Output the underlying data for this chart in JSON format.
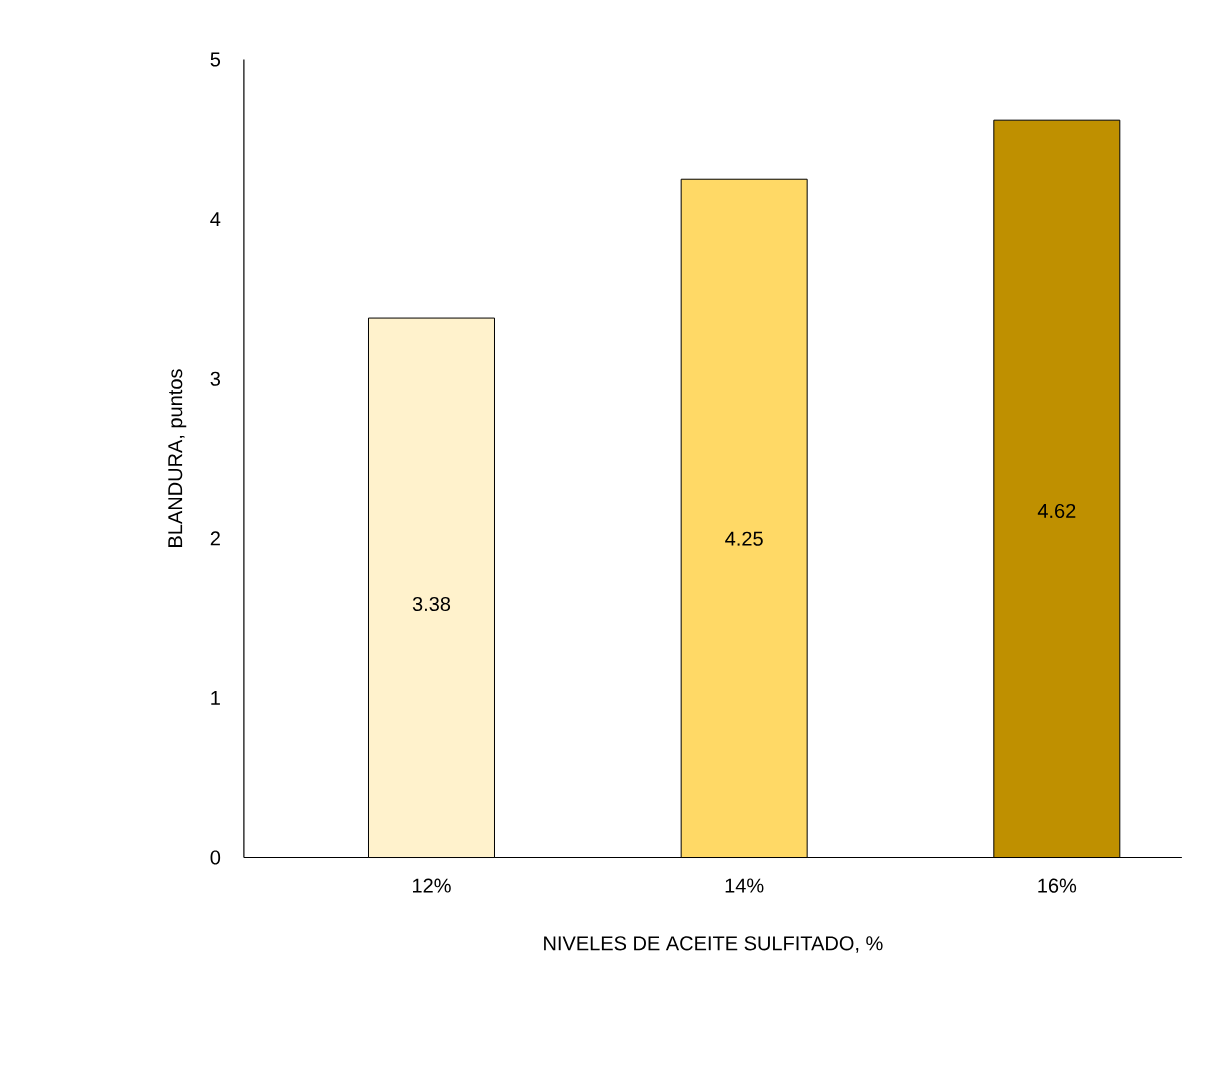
{
  "chart_data": {
    "type": "bar",
    "xlabel": "NIVELES DE ACEITE SULFITADO, %",
    "ylabel": "BLANDURA, puntos",
    "categories": [
      "12%",
      "14%",
      "16%"
    ],
    "values": [
      3.38,
      4.25,
      4.62
    ],
    "colors": [
      "#fff2cc",
      "#ffd966",
      "#bf9000"
    ],
    "value_labels": [
      "3.38",
      "4.25",
      "4.62"
    ],
    "ylim": [
      0,
      5
    ],
    "yticks": [
      0,
      1,
      2,
      3,
      4,
      5
    ]
  }
}
